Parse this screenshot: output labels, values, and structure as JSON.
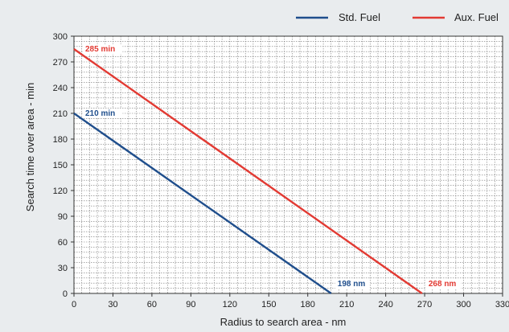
{
  "chart_data": {
    "type": "line",
    "xlabel": "Radius to search area - nm",
    "ylabel": "Search time over area - min",
    "xlim": [
      0,
      330
    ],
    "ylim": [
      0,
      300
    ],
    "x_ticks": [
      0,
      30,
      60,
      90,
      120,
      150,
      180,
      210,
      240,
      270,
      300,
      330
    ],
    "y_ticks": [
      0,
      30,
      60,
      90,
      120,
      150,
      180,
      210,
      240,
      270,
      300
    ],
    "grid": true,
    "legend_position": "top-right",
    "series": [
      {
        "name": "Std. Fuel",
        "color": "#1f4e8c",
        "x": [
          0,
          198
        ],
        "y": [
          210,
          0
        ]
      },
      {
        "name": "Aux. Fuel",
        "color": "#e23a33",
        "x": [
          0,
          268
        ],
        "y": [
          285,
          0
        ]
      }
    ],
    "annotations": [
      {
        "text": "210 min",
        "x": 0,
        "y": 210,
        "color": "#1f4e8c"
      },
      {
        "text": "285 min",
        "x": 0,
        "y": 285,
        "color": "#e23a33"
      },
      {
        "text": "198 nm",
        "x": 198,
        "y": 0,
        "color": "#1f4e8c"
      },
      {
        "text": "268 nm",
        "x": 268,
        "y": 0,
        "color": "#e23a33"
      }
    ]
  }
}
